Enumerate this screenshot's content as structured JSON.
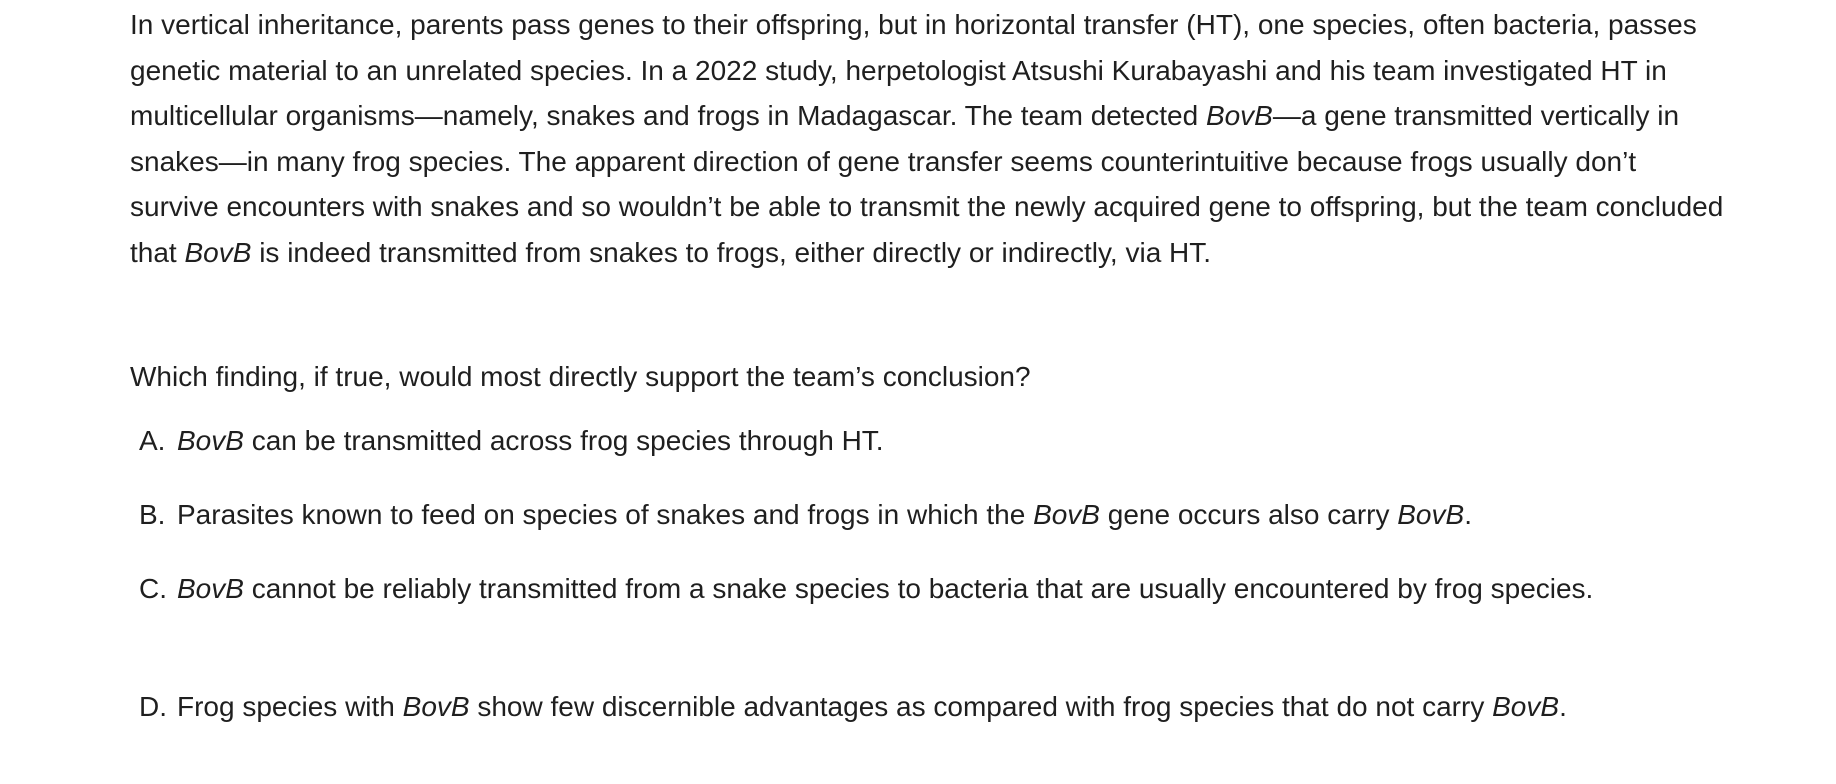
{
  "passage": {
    "s1": "In vertical inheritance, parents pass genes to their offspring, but in horizontal transfer (HT), one species, often bacteria, passes genetic material to an unrelated species. In a 2022 study, herpetologist Atsushi Kurabayashi and his team investigated HT in multicellular organisms—namely, snakes and frogs in Madagascar. The team detected ",
    "gene1": "BovB",
    "s2": "—a gene transmitted vertically in snakes—in many frog species. The apparent direction of gene transfer seems counterintuitive because frogs usually don’t survive encounters with snakes and so wouldn’t be able to transmit the newly acquired gene to offspring, but the team concluded that ",
    "gene2": "BovB",
    "s3": " is indeed transmitted from snakes to frogs, either directly or indirectly, via HT."
  },
  "question": "Which finding, if true, would most directly support the team’s conclusion?",
  "choices": {
    "a": {
      "letter": "A.",
      "gene1": "BovB",
      "t1": " can be transmitted across frog species through HT."
    },
    "b": {
      "letter": "B.",
      "t1": "Parasites known to feed on species of snakes and frogs in which the ",
      "gene1": "BovB",
      "t2": " gene occurs also carry ",
      "gene2": "BovB",
      "t3": "."
    },
    "c": {
      "letter": "C.",
      "gene1": "BovB",
      "t1": " cannot be reliably transmitted from a snake species to bacteria that are usually encountered by frog species."
    },
    "d": {
      "letter": "D.",
      "t1": "Frog species with ",
      "gene1": "BovB",
      "t2": " show few discernible advantages as compared with frog species that do not carry ",
      "gene2": "BovB",
      "t3": "."
    }
  }
}
